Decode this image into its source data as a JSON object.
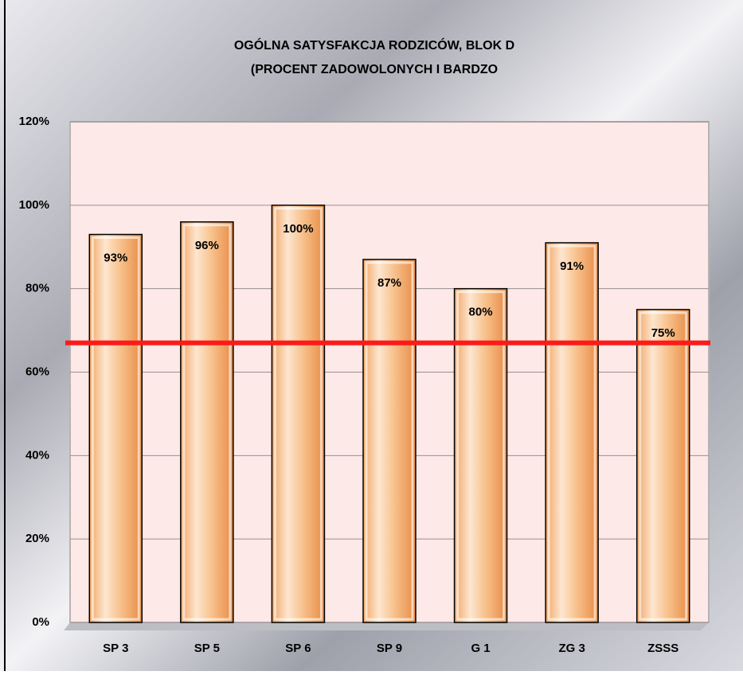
{
  "chart_data": {
    "type": "bar",
    "title": [
      "OGÓLNA SATYSFAKCJA RODZICÓW, BLOK D",
      "(PROCENT ZADOWOLONYCH I BARDZO"
    ],
    "categories": [
      "SP 3",
      "SP 5",
      "SP 6",
      "SP 9",
      "G 1",
      "ZG 3",
      "ZSSS"
    ],
    "values": [
      93,
      96,
      100,
      87,
      80,
      91,
      75
    ],
    "value_labels": [
      "93%",
      "96%",
      "100%",
      "87%",
      "80%",
      "91%",
      "75%"
    ],
    "ylim": [
      0,
      120
    ],
    "yticks": [
      {
        "value": 0,
        "label": "0%"
      },
      {
        "value": 20,
        "label": "20%"
      },
      {
        "value": 40,
        "label": "40%"
      },
      {
        "value": 60,
        "label": "60%"
      },
      {
        "value": 80,
        "label": "80%"
      },
      {
        "value": 100,
        "label": "100%"
      },
      {
        "value": 120,
        "label": "120%"
      }
    ],
    "grid": true,
    "reference_line": {
      "value": 67,
      "color": "#ff1a1a"
    }
  }
}
